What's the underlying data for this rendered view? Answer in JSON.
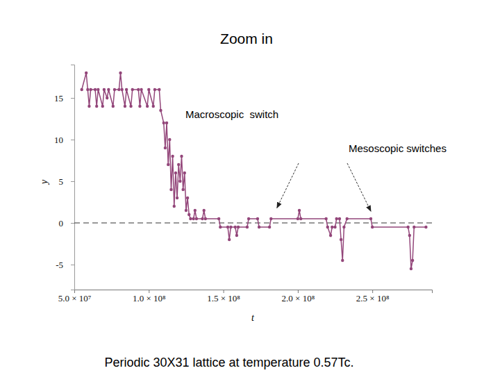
{
  "chart_data": {
    "type": "line",
    "title": "Zoom in",
    "caption": "Periodic 30X31 lattice at temperature 0.57Tc.",
    "x_label": "t",
    "y_label": "y",
    "color": "#93467a",
    "marker": "circle",
    "line_style": "solid",
    "xlim": [
      50000000.0,
      290000000.0
    ],
    "ylim": [
      -8,
      19
    ],
    "xticks": [
      {
        "value": 50000000.0,
        "label": "5.0 × 10⁷"
      },
      {
        "value": 100000000.0,
        "label": "1.0 × 10⁸"
      },
      {
        "value": 150000000.0,
        "label": "1.5 × 10⁸"
      },
      {
        "value": 200000000.0,
        "label": "2.0 × 10⁸"
      },
      {
        "value": 250000000.0,
        "label": "2.5 × 10⁸"
      }
    ],
    "yticks": [
      -5,
      0,
      5,
      10,
      15
    ],
    "reference_y": 0,
    "annotations": [
      {
        "text": "Macroscopic  switch"
      },
      {
        "text": "Mesoscopic switches",
        "targets": [
          [
            186000000.0,
            1.8
          ],
          [
            249000000.0,
            1.4
          ]
        ]
      }
    ],
    "x": [
      55000000.0,
      58000000.0,
      59000000.0,
      60000000.0,
      61000000.0,
      64000000.0,
      65000000.0,
      66000000.0,
      69000000.0,
      70000000.0,
      72000000.0,
      73000000.0,
      76000000.0,
      77000000.0,
      80000000.0,
      81000000.0,
      82000000.0,
      84000000.0,
      85000000.0,
      88000000.0,
      89000000.0,
      93000000.0,
      94000000.0,
      95000000.0,
      99000000.0,
      100000000.0,
      103000000.0,
      104000000.0,
      107000000.0,
      108000000.0,
      110000000.0,
      111000000.0,
      112000000.0,
      113000000.0,
      114000000.0,
      115000000.0,
      116000000.0,
      117000000.0,
      118000000.0,
      119000000.0,
      120000000.0,
      121000000.0,
      122000000.0,
      123000000.0,
      124000000.0,
      125000000.0,
      126000000.0,
      127000000.0,
      128000000.0,
      130000000.0,
      131000000.0,
      132000000.0,
      136000000.0,
      137000000.0,
      138000000.0,
      147000000.0,
      148000000.0,
      153000000.0,
      154000000.0,
      155000000.0,
      158000000.0,
      159000000.0,
      160000000.0,
      166000000.0,
      167000000.0,
      173000000.0,
      174000000.0,
      181000000.0,
      182000000.0,
      200000000.0,
      201000000.0,
      202000000.0,
      219000000.0,
      220000000.0,
      222000000.0,
      223000000.0,
      225000000.0,
      226000000.0,
      228000000.0,
      229000000.0,
      230000000.0,
      231000000.0,
      233000000.0,
      249000000.0,
      250000000.0,
      274000000.0,
      275000000.0,
      276000000.0,
      277000000.0,
      278000000.0,
      286000000.0
    ],
    "values": [
      16,
      18,
      16,
      14,
      16,
      16,
      14,
      16,
      14,
      16,
      15,
      16,
      14,
      16,
      16,
      18,
      16,
      14,
      16,
      14,
      16,
      16,
      14,
      16,
      14,
      16,
      14,
      16,
      16,
      13.5,
      12,
      9,
      12,
      7,
      10,
      4,
      8,
      2,
      6,
      3,
      7,
      5,
      8,
      4,
      6,
      1.5,
      3,
      1,
      0.5,
      0.5,
      1.5,
      0.5,
      0.5,
      1.5,
      0.5,
      0.5,
      -0.5,
      -0.5,
      -2,
      -0.5,
      -0.5,
      -1.5,
      -0.5,
      -0.5,
      0.5,
      0.5,
      -0.5,
      -0.5,
      0.5,
      0.5,
      1.5,
      0.5,
      0.5,
      -0.5,
      -1.5,
      -0.5,
      -0.5,
      0.5,
      0.5,
      -2,
      -4.5,
      -0.5,
      0.5,
      0.5,
      -0.5,
      -0.5,
      -1.5,
      -5.5,
      -4.5,
      -0.5,
      -0.5
    ]
  }
}
